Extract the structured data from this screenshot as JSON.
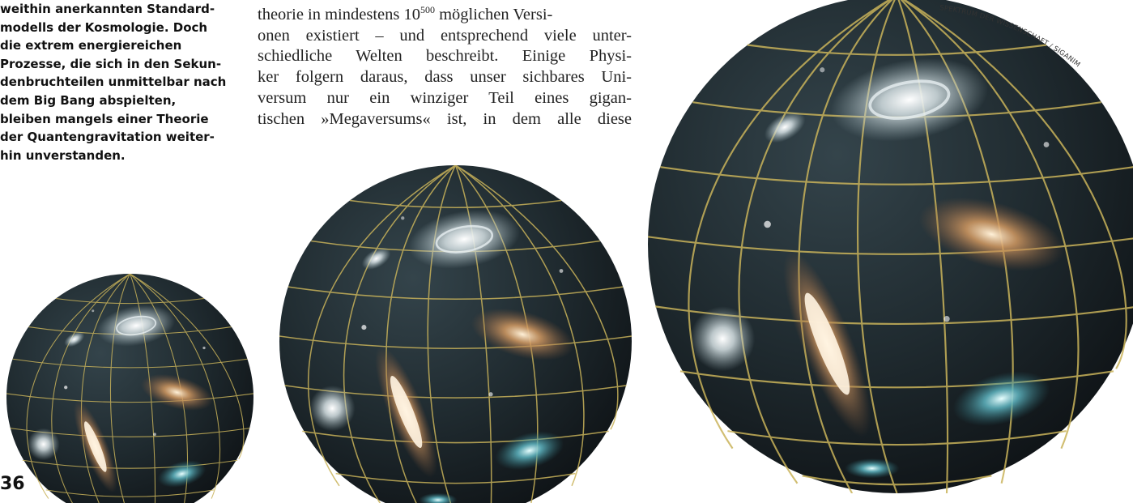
{
  "sidebar": {
    "lines": [
      "weithin anerkannten Standard-",
      "modells der Kosmologie. Doch",
      "die extrem energiereichen",
      "Prozesse, die sich in den Sekun-",
      "denbruchteilen unmittelbar nach",
      "dem Big Bang abspielten,",
      "bleiben mangels einer Theorie",
      "der Quantengravitation weiter-",
      "hin unverstanden."
    ]
  },
  "body": {
    "line1_before": "theorie in mindestens 10",
    "line1_sup": "500",
    "line1_after": " möglichen Versi-",
    "lines": [
      "onen existiert – und entsprechend viele unter-",
      "schiedliche Welten beschreibt. Einige Physi-",
      "ker folgern daraus, dass unser sichbares Uni-",
      "versum nur ein winziger Teil eines gigan-",
      "tischen »Megaversums« ist, in dem alle diese"
    ]
  },
  "page_number": "36",
  "credit": "SPEKTRUM DER WISSENSCHAFT / SIGANIM",
  "colors": {
    "sphere_dark": "#14181c",
    "sphere_mid": "#2c3a40",
    "grid_line": "#c9b35a",
    "galaxy_white": "#dfe8ea",
    "galaxy_orange": "#c78a55",
    "galaxy_cyan": "#5fb6c2"
  },
  "illustration": {
    "icon": "expanding-universe-globes",
    "globes": [
      "globe-small",
      "globe-medium",
      "globe-large"
    ]
  }
}
